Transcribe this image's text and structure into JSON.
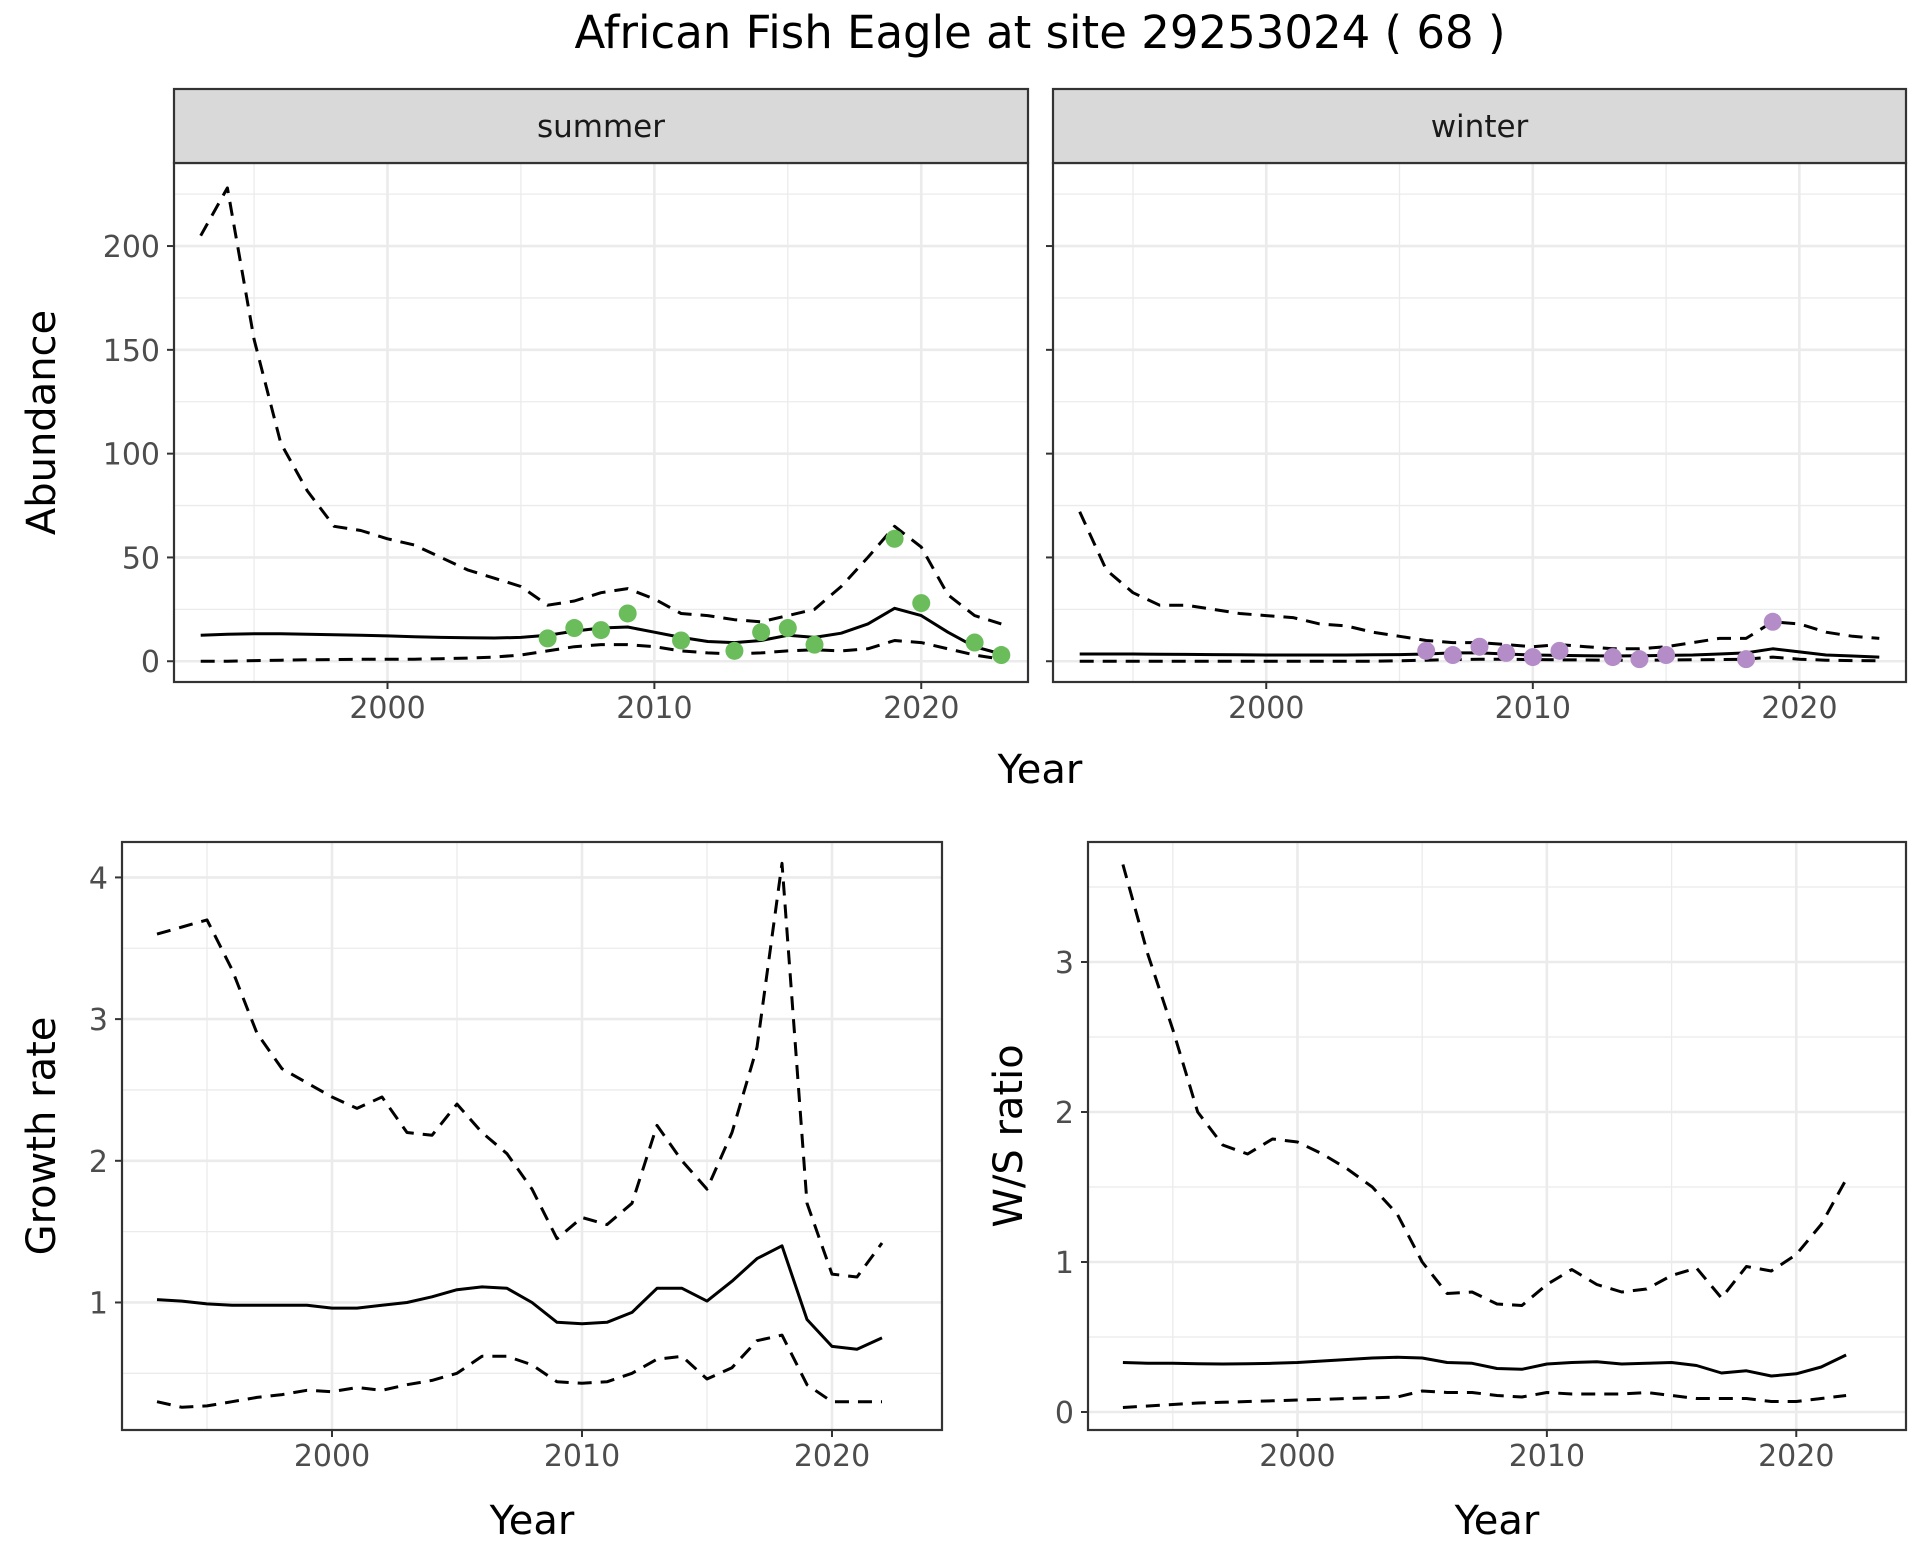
{
  "title": "African Fish Eagle at site 29253024 ( 68 )",
  "chart_data": [
    {
      "type": "line",
      "panel": "abundance-summer",
      "facet_label": "summer",
      "xlabel": "Year",
      "ylabel": "Abundance",
      "xlim": [
        1992,
        2024
      ],
      "ylim": [
        -10,
        240
      ],
      "xticks": [
        2000,
        2010,
        2020
      ],
      "yticks": [
        0,
        50,
        100,
        150,
        200
      ],
      "grid": true,
      "series": [
        {
          "role": "estimate",
          "style": "solid",
          "x": [
            1993,
            1994,
            1995,
            1996,
            1997,
            1998,
            1999,
            2000,
            2001,
            2002,
            2003,
            2004,
            2005,
            2006,
            2007,
            2008,
            2009,
            2010,
            2011,
            2012,
            2013,
            2014,
            2015,
            2016,
            2017,
            2018,
            2019,
            2020,
            2021,
            2022,
            2023
          ],
          "values": [
            12.5,
            13,
            13.2,
            13.2,
            13,
            12.8,
            12.5,
            12.2,
            11.8,
            11.5,
            11.3,
            11.2,
            11.5,
            12.5,
            14.5,
            16,
            16.5,
            14,
            11.5,
            9.5,
            9,
            10,
            12.5,
            11.5,
            13.5,
            18,
            25.5,
            22,
            14,
            7,
            3.5
          ]
        },
        {
          "role": "upper",
          "style": "dashed",
          "x": [
            1993,
            1994,
            1995,
            1996,
            1997,
            1998,
            1999,
            2000,
            2001,
            2002,
            2003,
            2004,
            2005,
            2006,
            2007,
            2008,
            2009,
            2010,
            2011,
            2012,
            2013,
            2014,
            2015,
            2016,
            2017,
            2018,
            2019,
            2020,
            2021,
            2022,
            2023
          ],
          "values": [
            205,
            228,
            155,
            105,
            82,
            65,
            63,
            59,
            56,
            50,
            44,
            40,
            36,
            27,
            29,
            33,
            35,
            30,
            23,
            22,
            20,
            19,
            22,
            25,
            36,
            50,
            65,
            55,
            32,
            22,
            18
          ]
        },
        {
          "role": "lower",
          "style": "dashed",
          "x": [
            1993,
            1994,
            1995,
            1996,
            1997,
            1998,
            1999,
            2000,
            2001,
            2002,
            2003,
            2004,
            2005,
            2006,
            2007,
            2008,
            2009,
            2010,
            2011,
            2012,
            2013,
            2014,
            2015,
            2016,
            2017,
            2018,
            2019,
            2020,
            2021,
            2022,
            2023
          ],
          "values": [
            0,
            0,
            0.3,
            0.5,
            0.7,
            0.8,
            1,
            1,
            1,
            1.2,
            1.5,
            2,
            3,
            5,
            7,
            8,
            8,
            7,
            5,
            4,
            3.5,
            4,
            5,
            5.5,
            5,
            6,
            10,
            9,
            6,
            3,
            1
          ]
        },
        {
          "role": "observed",
          "style": "points",
          "color": "#6abd5a",
          "x": [
            2006,
            2007,
            2008,
            2009,
            2011,
            2013,
            2014,
            2015,
            2016,
            2019,
            2020,
            2022,
            2023
          ],
          "values": [
            11,
            16,
            15,
            23,
            10,
            5,
            14,
            16,
            8,
            59,
            28,
            9,
            3
          ]
        }
      ]
    },
    {
      "type": "line",
      "panel": "abundance-winter",
      "facet_label": "winter",
      "xlabel": "Year",
      "ylabel": "Abundance",
      "xlim": [
        1992,
        2024
      ],
      "ylim": [
        -10,
        240
      ],
      "xticks": [
        2000,
        2010,
        2020
      ],
      "yticks": [
        0,
        50,
        100,
        150,
        200
      ],
      "grid": true,
      "series": [
        {
          "role": "estimate",
          "style": "solid",
          "x": [
            1993,
            1994,
            1995,
            1996,
            1997,
            1998,
            1999,
            2000,
            2001,
            2002,
            2003,
            2004,
            2005,
            2006,
            2007,
            2008,
            2009,
            2010,
            2011,
            2012,
            2013,
            2014,
            2015,
            2016,
            2017,
            2018,
            2019,
            2020,
            2021,
            2022,
            2023
          ],
          "values": [
            3.5,
            3.5,
            3.5,
            3.4,
            3.3,
            3.2,
            3.1,
            3,
            3,
            3,
            3,
            3.1,
            3.2,
            3.5,
            4,
            4,
            3.5,
            3,
            2.8,
            2.6,
            2.5,
            2.6,
            2.8,
            3,
            3.5,
            4,
            6,
            4.5,
            3,
            2.5,
            2
          ]
        },
        {
          "role": "upper",
          "style": "dashed",
          "x": [
            1993,
            1994,
            1995,
            1996,
            1997,
            1998,
            1999,
            2000,
            2001,
            2002,
            2003,
            2004,
            2005,
            2006,
            2007,
            2008,
            2009,
            2010,
            2011,
            2012,
            2013,
            2014,
            2015,
            2016,
            2017,
            2018,
            2019,
            2020,
            2021,
            2022,
            2023
          ],
          "values": [
            72,
            44,
            33,
            27,
            27,
            25,
            23,
            22,
            21,
            18,
            17,
            14,
            12,
            10,
            9,
            9,
            8,
            7,
            8,
            7,
            6,
            6,
            7,
            9,
            11,
            11,
            19,
            18,
            14,
            12,
            11
          ]
        },
        {
          "role": "lower",
          "style": "dashed",
          "x": [
            1993,
            1994,
            1995,
            1996,
            1997,
            1998,
            1999,
            2000,
            2001,
            2002,
            2003,
            2004,
            2005,
            2006,
            2007,
            2008,
            2009,
            2010,
            2011,
            2012,
            2013,
            2014,
            2015,
            2016,
            2017,
            2018,
            2019,
            2020,
            2021,
            2022,
            2023
          ],
          "values": [
            0,
            0,
            0,
            0,
            0,
            0,
            0,
            0,
            0,
            0,
            0,
            0,
            0.2,
            0.5,
            0.8,
            1,
            1,
            0.8,
            0.7,
            0.6,
            0.5,
            0.5,
            0.6,
            0.7,
            0.8,
            1,
            2,
            1,
            0.5,
            0.3,
            0.2
          ]
        },
        {
          "role": "observed",
          "style": "points",
          "color": "#b48cc8",
          "x": [
            2006,
            2007,
            2008,
            2009,
            2010,
            2011,
            2013,
            2014,
            2015,
            2018,
            2019
          ],
          "values": [
            5,
            3,
            7,
            4,
            2,
            5,
            2,
            1,
            3,
            1,
            19
          ]
        }
      ]
    },
    {
      "type": "line",
      "panel": "growth-rate",
      "xlabel": "Year",
      "ylabel": "Growth rate",
      "xlim": [
        1991.6,
        2024.4
      ],
      "ylim": [
        0.1,
        4.25
      ],
      "xticks": [
        2000,
        2010,
        2020
      ],
      "yticks": [
        1,
        2,
        3,
        4
      ],
      "grid": true,
      "series": [
        {
          "role": "estimate",
          "style": "solid",
          "x": [
            1993,
            1994,
            1995,
            1996,
            1997,
            1998,
            1999,
            2000,
            2001,
            2002,
            2003,
            2004,
            2005,
            2006,
            2007,
            2008,
            2009,
            2010,
            2011,
            2012,
            2013,
            2014,
            2015,
            2016,
            2017,
            2018,
            2019,
            2020,
            2021,
            2022
          ],
          "values": [
            1.02,
            1.01,
            0.99,
            0.98,
            0.98,
            0.98,
            0.98,
            0.96,
            0.96,
            0.98,
            1,
            1.04,
            1.09,
            1.11,
            1.1,
            1,
            0.86,
            0.85,
            0.86,
            0.93,
            1.1,
            1.1,
            1.01,
            1.15,
            1.31,
            1.4,
            0.88,
            0.69,
            0.67,
            0.75
          ]
        },
        {
          "role": "upper",
          "style": "dashed",
          "x": [
            1993,
            1994,
            1995,
            1996,
            1997,
            1998,
            1999,
            2000,
            2001,
            2002,
            2003,
            2004,
            2005,
            2006,
            2007,
            2008,
            2009,
            2010,
            2011,
            2012,
            2013,
            2014,
            2015,
            2016,
            2017,
            2018,
            2019,
            2020,
            2021,
            2022
          ],
          "values": [
            3.6,
            3.65,
            3.7,
            3.35,
            2.9,
            2.65,
            2.55,
            2.45,
            2.37,
            2.45,
            2.2,
            2.18,
            2.4,
            2.2,
            2.05,
            1.8,
            1.45,
            1.6,
            1.55,
            1.7,
            2.25,
            2,
            1.8,
            2.2,
            2.8,
            4.1,
            1.7,
            1.2,
            1.18,
            1.42
          ]
        },
        {
          "role": "lower",
          "style": "dashed",
          "x": [
            1993,
            1994,
            1995,
            1996,
            1997,
            1998,
            1999,
            2000,
            2001,
            2002,
            2003,
            2004,
            2005,
            2006,
            2007,
            2008,
            2009,
            2010,
            2011,
            2012,
            2013,
            2014,
            2015,
            2016,
            2017,
            2018,
            2019,
            2020,
            2021,
            2022
          ],
          "values": [
            0.3,
            0.26,
            0.27,
            0.3,
            0.33,
            0.35,
            0.38,
            0.37,
            0.4,
            0.38,
            0.42,
            0.45,
            0.5,
            0.62,
            0.62,
            0.56,
            0.44,
            0.43,
            0.44,
            0.5,
            0.6,
            0.62,
            0.46,
            0.54,
            0.73,
            0.77,
            0.42,
            0.3,
            0.3,
            0.3
          ]
        }
      ]
    },
    {
      "type": "line",
      "panel": "ws-ratio",
      "xlabel": "Year",
      "ylabel": "W/S ratio",
      "xlim": [
        1991.6,
        2024.4
      ],
      "ylim": [
        -0.12,
        3.8
      ],
      "xticks": [
        2000,
        2010,
        2020
      ],
      "yticks": [
        0,
        1,
        2,
        3
      ],
      "grid": true,
      "series": [
        {
          "role": "estimate",
          "style": "solid",
          "x": [
            1993,
            1994,
            1995,
            1996,
            1997,
            1998,
            1999,
            2000,
            2001,
            2002,
            2003,
            2004,
            2005,
            2006,
            2007,
            2008,
            2009,
            2010,
            2011,
            2012,
            2013,
            2014,
            2015,
            2016,
            2017,
            2018,
            2019,
            2020,
            2021,
            2022
          ],
          "values": [
            0.33,
            0.325,
            0.325,
            0.322,
            0.32,
            0.322,
            0.325,
            0.33,
            0.34,
            0.35,
            0.36,
            0.365,
            0.36,
            0.33,
            0.325,
            0.29,
            0.285,
            0.32,
            0.33,
            0.335,
            0.32,
            0.325,
            0.33,
            0.31,
            0.26,
            0.275,
            0.24,
            0.255,
            0.3,
            0.38
          ]
        },
        {
          "role": "upper",
          "style": "dashed",
          "x": [
            1993,
            1994,
            1995,
            1996,
            1997,
            1998,
            1999,
            2000,
            2001,
            2002,
            2003,
            2004,
            2005,
            2006,
            2007,
            2008,
            2009,
            2010,
            2011,
            2012,
            2013,
            2014,
            2015,
            2016,
            2017,
            2018,
            2019,
            2020,
            2021,
            2022
          ],
          "values": [
            3.65,
            3.05,
            2.55,
            2.0,
            1.78,
            1.72,
            1.82,
            1.8,
            1.72,
            1.62,
            1.5,
            1.32,
            1.0,
            0.79,
            0.8,
            0.72,
            0.71,
            0.85,
            0.95,
            0.85,
            0.8,
            0.82,
            0.91,
            0.96,
            0.76,
            0.97,
            0.94,
            1.05,
            1.25,
            1.55
          ]
        },
        {
          "role": "lower",
          "style": "dashed",
          "x": [
            1993,
            1994,
            1995,
            1996,
            1997,
            1998,
            1999,
            2000,
            2001,
            2002,
            2003,
            2004,
            2005,
            2006,
            2007,
            2008,
            2009,
            2010,
            2011,
            2012,
            2013,
            2014,
            2015,
            2016,
            2017,
            2018,
            2019,
            2020,
            2021,
            2022
          ],
          "values": [
            0.03,
            0.04,
            0.05,
            0.06,
            0.065,
            0.07,
            0.075,
            0.08,
            0.085,
            0.09,
            0.095,
            0.1,
            0.14,
            0.13,
            0.13,
            0.11,
            0.1,
            0.13,
            0.12,
            0.12,
            0.12,
            0.13,
            0.11,
            0.09,
            0.09,
            0.09,
            0.07,
            0.07,
            0.09,
            0.11
          ]
        }
      ]
    }
  ]
}
